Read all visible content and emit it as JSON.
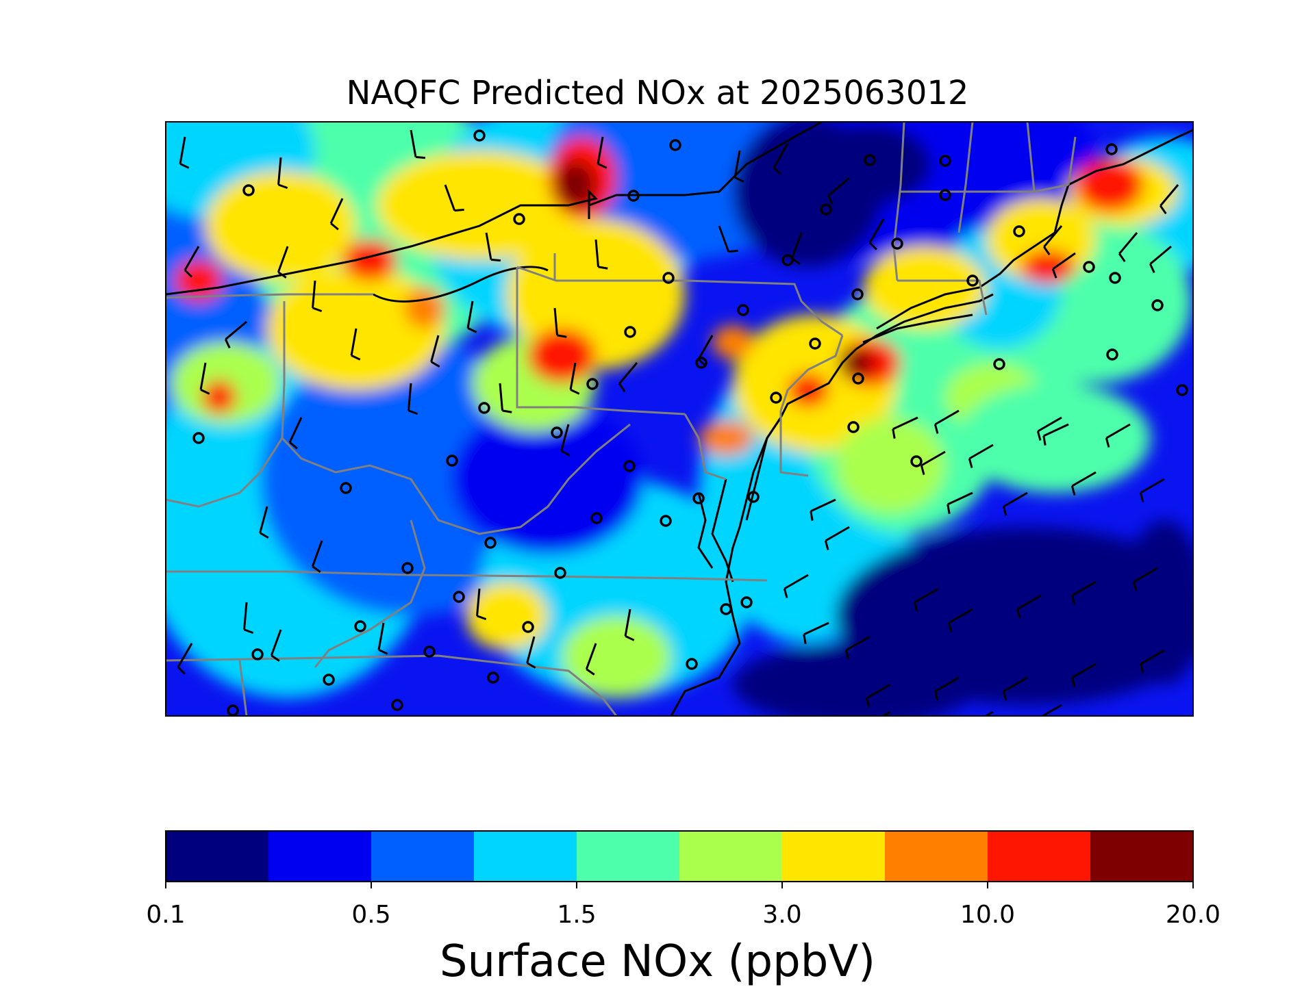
{
  "title": "NAQFC Predicted NOx at 2025063012",
  "colorbar": {
    "label": "Surface NOx (ppbV)",
    "colors": [
      "#00007f",
      "#0000f1",
      "#0060ff",
      "#00d5ff",
      "#4dffaa",
      "#aaff4d",
      "#ffe500",
      "#ff7f00",
      "#ff1600",
      "#7f0000"
    ],
    "tick_labels": [
      "0.1",
      "0.5",
      "1.5",
      "3.0",
      "10.0",
      "20.0"
    ]
  },
  "map": {
    "coastline_color": "#000000",
    "state_border_color": "#808080",
    "wind_barb_color": "#000000",
    "station_marker": "hollow-circle"
  }
}
